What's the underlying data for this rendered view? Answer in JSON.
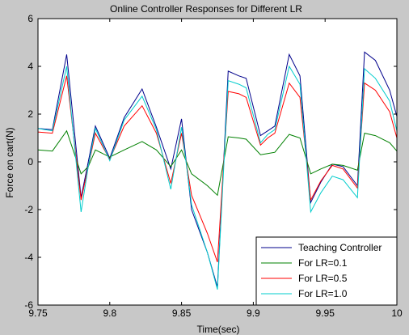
{
  "chart_data": {
    "type": "line",
    "title": "Online  Controller Responses for Different LR",
    "xlabel": "Time(sec)",
    "ylabel": "Force on cart(N)",
    "xlim": [
      9.75,
      10
    ],
    "ylim": [
      -6,
      6
    ],
    "xticks": [
      9.75,
      9.8,
      9.85,
      9.9,
      9.95,
      10
    ],
    "xtick_labels": [
      "9.75",
      "9.8",
      "9.85",
      "9.9",
      "9.95",
      "10"
    ],
    "yticks": [
      -6,
      -4,
      -2,
      0,
      2,
      4,
      6
    ],
    "ytick_labels": [
      "-6",
      "-4",
      "-2",
      "0",
      "2",
      "4",
      "6"
    ],
    "grid": false,
    "legend_position": "bottom-right",
    "background": "#ffffff",
    "figure_background": "#c8c8c8",
    "x": [
      9.75,
      9.76,
      9.77,
      9.78,
      9.785,
      9.79,
      9.8,
      9.81,
      9.8225,
      9.8325,
      9.8425,
      9.85,
      9.857,
      9.868,
      9.875,
      9.8825,
      9.89,
      9.895,
      9.905,
      9.91,
      9.915,
      9.925,
      9.9325,
      9.94,
      9.947,
      9.955,
      9.9625,
      9.9725,
      9.9775,
      9.985,
      9.995,
      10.0
    ],
    "series": [
      {
        "name": "Teaching Controller",
        "color": "#00008b",
        "values": [
          1.4,
          1.35,
          4.5,
          -1.5,
          0.0,
          1.5,
          0.15,
          1.85,
          3.05,
          1.45,
          -0.3,
          1.8,
          -2.0,
          -3.8,
          -5.25,
          3.8,
          3.6,
          3.5,
          1.1,
          1.3,
          1.5,
          4.5,
          3.6,
          -1.7,
          -0.85,
          -0.1,
          -0.2,
          -1.0,
          4.6,
          4.25,
          3.0,
          1.9
        ]
      },
      {
        "name": "For LR=0.1",
        "color": "#008000",
        "values": [
          0.5,
          0.45,
          1.3,
          -0.5,
          -0.2,
          0.5,
          0.2,
          0.5,
          0.85,
          0.5,
          -0.2,
          0.5,
          -0.5,
          -1.0,
          -1.4,
          1.05,
          1.0,
          0.95,
          0.3,
          0.35,
          0.4,
          1.15,
          1.0,
          -0.5,
          -0.3,
          -0.1,
          -0.15,
          -0.35,
          1.2,
          1.1,
          0.8,
          0.45
        ]
      },
      {
        "name": "For LR=0.5",
        "color": "#ff0000",
        "values": [
          1.25,
          1.2,
          3.6,
          -1.6,
          -0.2,
          1.2,
          0.1,
          1.5,
          2.35,
          1.2,
          -0.9,
          1.2,
          -1.4,
          -3.0,
          -4.2,
          2.95,
          2.85,
          2.7,
          0.7,
          1.0,
          1.2,
          3.3,
          2.7,
          -1.6,
          -0.8,
          -0.15,
          -0.3,
          -1.1,
          3.3,
          3.0,
          2.1,
          1.0
        ]
      },
      {
        "name": "For LR=1.0",
        "color": "#00cccc",
        "values": [
          1.4,
          1.3,
          4.0,
          -2.1,
          -0.2,
          1.4,
          0.05,
          1.75,
          2.75,
          1.35,
          -1.15,
          1.45,
          -1.8,
          -3.8,
          -5.35,
          3.4,
          3.25,
          3.1,
          0.8,
          1.15,
          1.35,
          4.0,
          3.25,
          -2.1,
          -1.3,
          -0.6,
          -0.75,
          -1.5,
          3.9,
          3.5,
          2.55,
          1.3
        ]
      }
    ]
  }
}
